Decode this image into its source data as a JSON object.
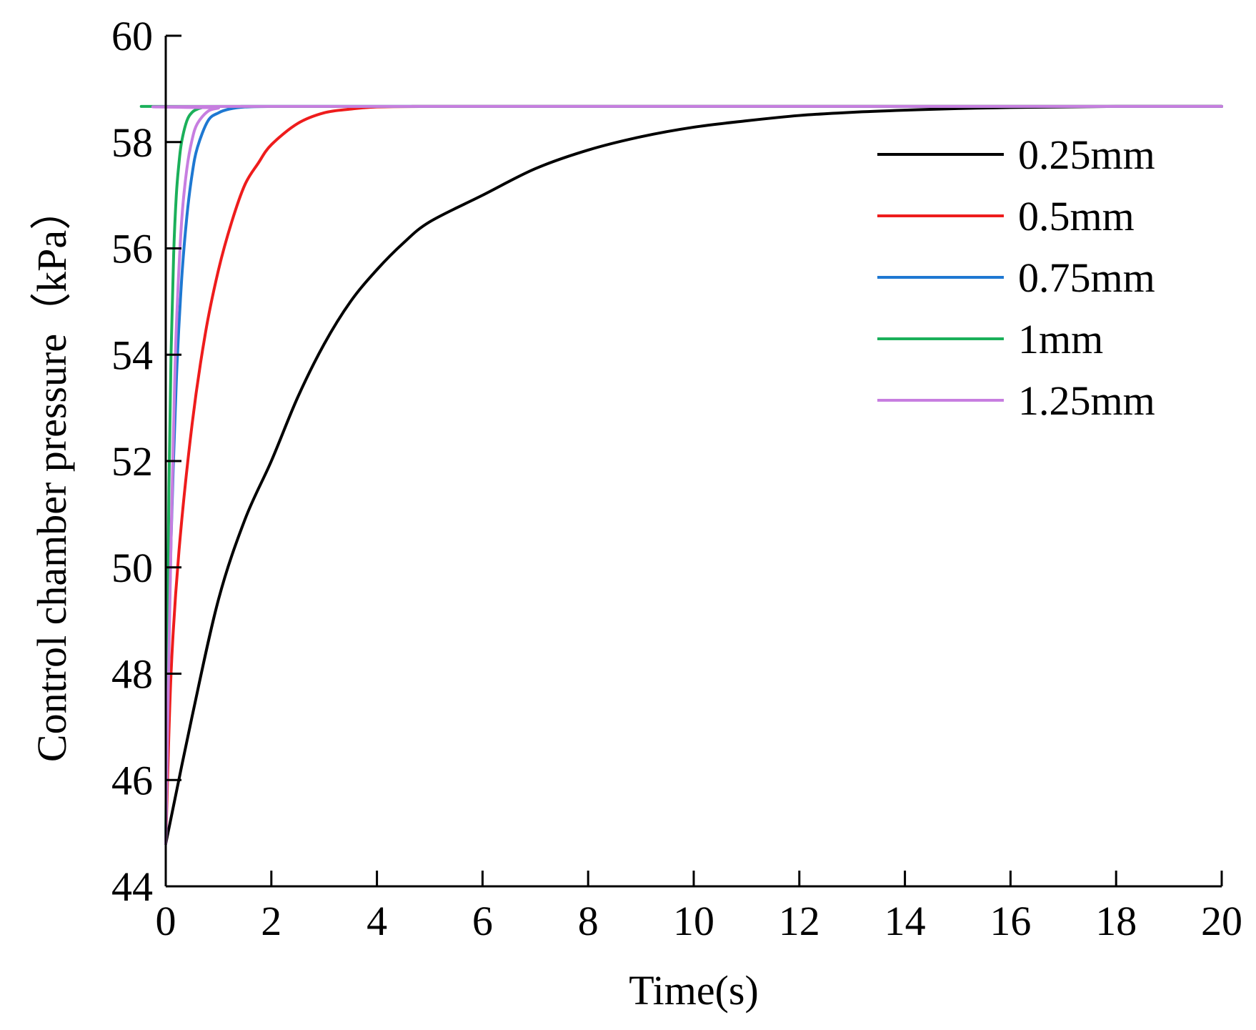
{
  "chart_data": {
    "type": "line",
    "title": "",
    "xlabel": "Time(s)",
    "ylabel": "Control chamber pressure（kPa）",
    "xlim": [
      0,
      20
    ],
    "ylim": [
      44,
      60
    ],
    "x_ticks": [
      0,
      2,
      4,
      6,
      8,
      10,
      12,
      14,
      16,
      18,
      20
    ],
    "y_ticks": [
      44,
      46,
      48,
      50,
      52,
      54,
      56,
      58,
      60
    ],
    "x_tick_labels": [
      "0",
      "2",
      "4",
      "6",
      "8",
      "10",
      "12",
      "14",
      "16",
      "18",
      "20"
    ],
    "y_tick_labels": [
      "44",
      "46",
      "48",
      "50",
      "52",
      "54",
      "56",
      "58",
      "60"
    ],
    "grid": false,
    "legend_position": "right",
    "series": [
      {
        "name": "0.25mm",
        "color": "#000000",
        "x": [
          0,
          0.5,
          1,
          1.5,
          2,
          2.5,
          3,
          3.5,
          4,
          4.5,
          5,
          6,
          7,
          8,
          9,
          10,
          11,
          12,
          13,
          14,
          15,
          16,
          17,
          18,
          19,
          20
        ],
        "y": [
          44.8,
          47.2,
          49.4,
          50.9,
          52.0,
          53.2,
          54.2,
          55.0,
          55.6,
          56.1,
          56.5,
          57.0,
          57.5,
          57.85,
          58.1,
          58.28,
          58.4,
          58.5,
          58.56,
          58.6,
          58.63,
          58.65,
          58.66,
          58.67,
          58.67,
          58.67
        ]
      },
      {
        "name": "0.5mm",
        "color": "#ee1c1c",
        "x": [
          0,
          0.1,
          0.25,
          0.5,
          0.75,
          1,
          1.25,
          1.5,
          1.75,
          2,
          2.5,
          3,
          3.5,
          4,
          5,
          6,
          20
        ],
        "y": [
          44.8,
          48.0,
          50.3,
          52.7,
          54.4,
          55.6,
          56.5,
          57.2,
          57.6,
          57.95,
          58.35,
          58.55,
          58.62,
          58.66,
          58.67,
          58.67,
          58.67
        ]
      },
      {
        "name": "0.75mm",
        "color": "#1e78d2",
        "x": [
          0,
          0.05,
          0.1,
          0.2,
          0.3,
          0.4,
          0.5,
          0.6,
          0.8,
          1,
          1.2,
          1.5,
          2,
          3,
          20
        ],
        "y": [
          44.8,
          48.0,
          50.5,
          53.5,
          55.4,
          56.6,
          57.4,
          57.9,
          58.4,
          58.55,
          58.62,
          58.66,
          58.67,
          58.67,
          58.67
        ]
      },
      {
        "name": "1mm",
        "color": "#1bb05a",
        "x": [
          0,
          0.03,
          0.06,
          0.1,
          0.15,
          0.2,
          0.25,
          0.3,
          0.4,
          0.5,
          0.6,
          0.7,
          0.8,
          1,
          20
        ],
        "y": [
          44.8,
          48.5,
          51.5,
          54.0,
          55.9,
          57.0,
          57.6,
          58.0,
          58.4,
          58.56,
          58.62,
          58.65,
          58.67,
          58.67,
          58.67
        ]
      },
      {
        "name": "1.25mm",
        "color": "#c77ee0",
        "x": [
          0,
          0.05,
          0.1,
          0.15,
          0.2,
          0.3,
          0.4,
          0.5,
          0.6,
          0.8,
          1,
          1.2,
          20
        ],
        "y": [
          44.8,
          47.8,
          50.5,
          52.7,
          54.5,
          56.5,
          57.5,
          58.05,
          58.35,
          58.58,
          58.64,
          58.67,
          58.67
        ]
      }
    ]
  }
}
